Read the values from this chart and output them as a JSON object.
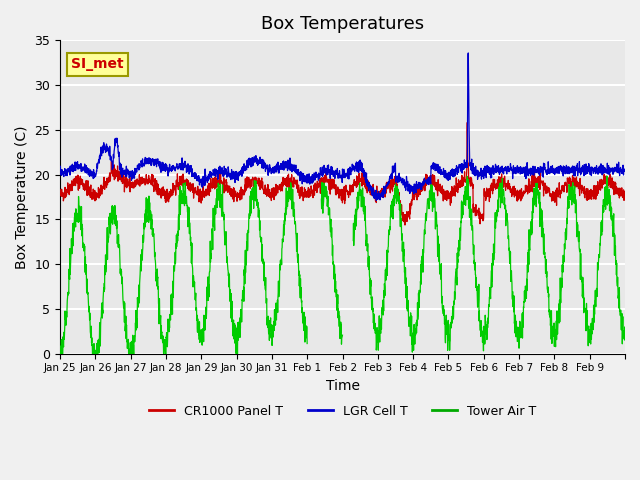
{
  "title": "Box Temperatures",
  "xlabel": "Time",
  "ylabel": "Box Temperature (C)",
  "ylim": [
    0,
    35
  ],
  "yticks": [
    0,
    5,
    10,
    15,
    20,
    25,
    30,
    35
  ],
  "x_tick_labels": [
    "Jan 25",
    "Jan 26",
    "Jan 27",
    "Jan 28",
    "Jan 29",
    "Jan 30",
    "Jan 31",
    "Feb 1",
    "Feb 2",
    "Feb 3",
    "Feb 4",
    "Feb 5",
    "Feb 6",
    "Feb 7",
    "Feb 8",
    "Feb 9"
  ],
  "legend_labels": [
    "CR1000 Panel T",
    "LGR Cell T",
    "Tower Air T"
  ],
  "legend_colors": [
    "#cc0000",
    "#0000cc",
    "#00aa00"
  ],
  "annotation_text": "SI_met",
  "annotation_color": "#cc0000",
  "annotation_bg": "#ffff99",
  "bg_color": "#e8e8e8",
  "line_colors": [
    "#cc0000",
    "#0000cc",
    "#00cc00"
  ],
  "title_fontsize": 13,
  "axis_fontsize": 10
}
